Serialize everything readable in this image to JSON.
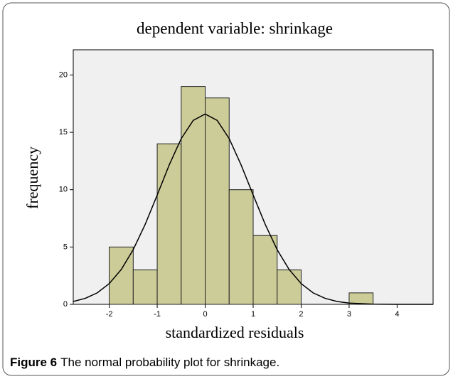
{
  "chart_data": {
    "type": "histogram",
    "title": "dependent variable: shrinkage",
    "xlabel": "standardized residuals",
    "ylabel": "frequency",
    "bins": [
      -2,
      -1.5,
      -1,
      -0.5,
      0,
      0.5,
      1,
      1.5,
      2,
      2.5,
      3,
      3.5
    ],
    "values": [
      5,
      3,
      14,
      19,
      18,
      10,
      6,
      3,
      0,
      0,
      1
    ],
    "color": "#cccc99",
    "curve": {
      "color": "#000000",
      "x": [
        -2.75,
        -2.5,
        -2.25,
        -2,
        -1.75,
        -1.5,
        -1.25,
        -1,
        -0.75,
        -0.5,
        -0.25,
        0,
        0.25,
        0.5,
        0.75,
        1,
        1.25,
        1.5,
        1.75,
        2,
        2.25,
        2.5,
        2.75,
        3,
        3.5,
        4,
        4.75
      ],
      "y": [
        0.25,
        0.52,
        1.0,
        1.81,
        3.04,
        4.77,
        6.98,
        9.54,
        12.15,
        14.45,
        16.04,
        16.6,
        16.04,
        14.45,
        12.15,
        9.54,
        6.98,
        4.77,
        3.04,
        1.81,
        1.0,
        0.52,
        0.25,
        0.11,
        0.02,
        0,
        0
      ]
    },
    "xlim": [
      -2.75,
      4.75
    ],
    "ylim": [
      0,
      22.2
    ],
    "xticks": [
      -2,
      -1,
      0,
      1,
      2,
      3,
      4
    ],
    "yticks": [
      0,
      5,
      10,
      15,
      20
    ],
    "background": "#f0f0f0"
  },
  "caption": {
    "label": "Figure 6",
    "text": "The normal probability plot for shrinkage."
  }
}
